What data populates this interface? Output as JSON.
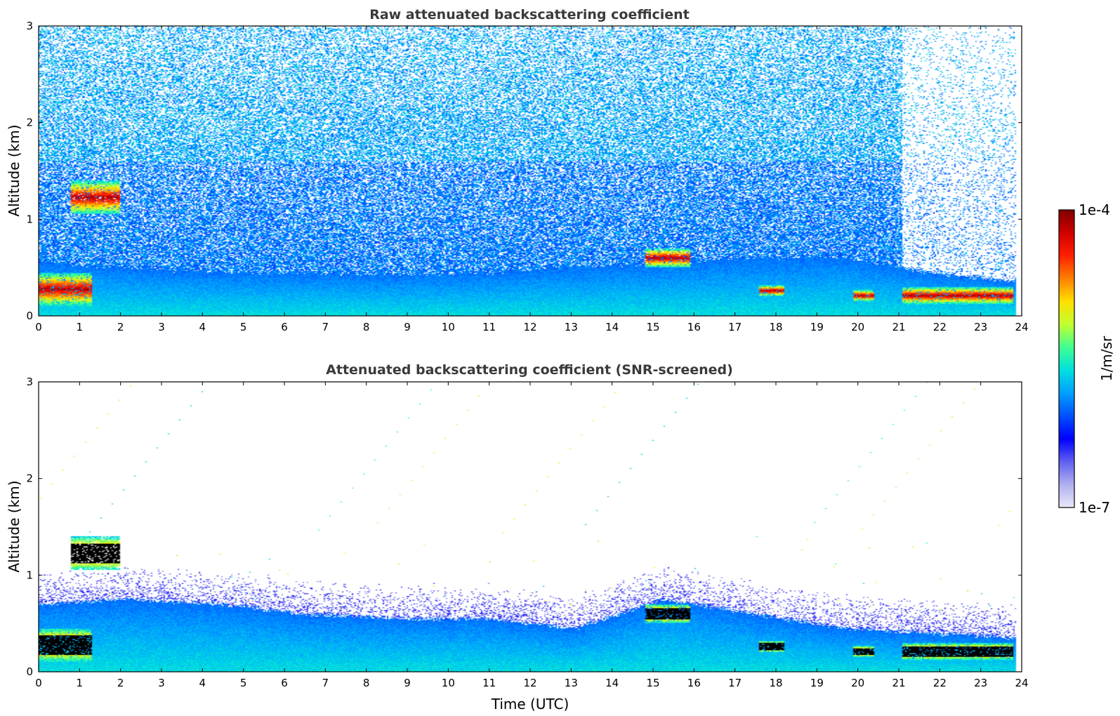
{
  "chart_data": [
    {
      "type": "heatmap",
      "title": "Raw attenuated backscattering coefficient",
      "xlabel": "",
      "ylabel": "Altitude (km)",
      "xlim": [
        0,
        24
      ],
      "ylim": [
        0,
        3
      ],
      "xticks": [
        "0",
        "1",
        "2",
        "3",
        "4",
        "5",
        "6",
        "7",
        "8",
        "9",
        "10",
        "11",
        "12",
        "13",
        "14",
        "15",
        "16",
        "17",
        "18",
        "19",
        "20",
        "21",
        "22",
        "23",
        "24"
      ],
      "yticks": [
        "0",
        "1",
        "2",
        "3"
      ],
      "noise": "high",
      "features": [
        {
          "kind": "boundary-layer",
          "t": [
            0,
            24
          ],
          "top_km": [
            0.55,
            0.5,
            0.45,
            0.45,
            0.42,
            0.45,
            0.5,
            0.55,
            0.6,
            0.6,
            0.45,
            0.35
          ]
        },
        {
          "kind": "cloud",
          "t": [
            0.8,
            2.0
          ],
          "alt_km": [
            1.05,
            1.4
          ],
          "intensity": "1e-4"
        },
        {
          "kind": "cloud",
          "t": [
            0.0,
            1.3
          ],
          "alt_km": [
            0.1,
            0.45
          ],
          "intensity": "1e-4"
        },
        {
          "kind": "cloud",
          "t": [
            14.8,
            15.9
          ],
          "alt_km": [
            0.5,
            0.7
          ],
          "intensity": "1e-4"
        },
        {
          "kind": "cloud",
          "t": [
            17.6,
            18.2
          ],
          "alt_km": [
            0.2,
            0.32
          ],
          "intensity": "1e-4"
        },
        {
          "kind": "cloud",
          "t": [
            19.9,
            20.4
          ],
          "alt_km": [
            0.15,
            0.27
          ],
          "intensity": "1e-4"
        },
        {
          "kind": "cloud",
          "t": [
            21.1,
            23.8
          ],
          "alt_km": [
            0.12,
            0.3
          ],
          "intensity": "1e-4"
        }
      ]
    },
    {
      "type": "heatmap",
      "title": "Attenuated backscattering coefficient (SNR-screened)",
      "xlabel": "Time (UTC)",
      "ylabel": "Altitude (km)",
      "xlim": [
        0,
        24
      ],
      "ylim": [
        0,
        3
      ],
      "xticks": [
        "0",
        "1",
        "2",
        "3",
        "4",
        "5",
        "6",
        "7",
        "8",
        "9",
        "10",
        "11",
        "12",
        "13",
        "14",
        "15",
        "16",
        "17",
        "18",
        "19",
        "20",
        "21",
        "22",
        "23",
        "24"
      ],
      "yticks": [
        "0",
        "1",
        "2",
        "3"
      ],
      "noise": "screened",
      "features": [
        {
          "kind": "boundary-layer",
          "t": [
            0,
            24
          ],
          "top_km": [
            0.7,
            0.75,
            0.7,
            0.6,
            0.55,
            0.55,
            0.45,
            0.75,
            0.6,
            0.45,
            0.4,
            0.35
          ]
        },
        {
          "kind": "cloud",
          "t": [
            0.8,
            2.0
          ],
          "alt_km": [
            1.05,
            1.4
          ],
          "intensity": "saturated"
        },
        {
          "kind": "cloud",
          "t": [
            0.0,
            1.3
          ],
          "alt_km": [
            0.1,
            0.45
          ],
          "intensity": "saturated"
        },
        {
          "kind": "cloud",
          "t": [
            14.8,
            15.9
          ],
          "alt_km": [
            0.5,
            0.7
          ],
          "intensity": "saturated"
        },
        {
          "kind": "cloud",
          "t": [
            17.6,
            18.2
          ],
          "alt_km": [
            0.2,
            0.32
          ],
          "intensity": "saturated"
        },
        {
          "kind": "cloud",
          "t": [
            19.9,
            20.4
          ],
          "alt_km": [
            0.15,
            0.27
          ],
          "intensity": "saturated"
        },
        {
          "kind": "cloud",
          "t": [
            21.1,
            23.8
          ],
          "alt_km": [
            0.12,
            0.3
          ],
          "intensity": "saturated"
        }
      ]
    }
  ],
  "colorbar": {
    "label": "1/m/sr",
    "max_label": "1e-4",
    "min_label": "1e-7",
    "colormap": [
      "#e8e8f8",
      "#b0b0f0",
      "#6060f0",
      "#0000ff",
      "#0050ff",
      "#00a0ff",
      "#00e0e0",
      "#40ff90",
      "#c0ff30",
      "#ffe000",
      "#ff8000",
      "#ff2000",
      "#d00000",
      "#800000"
    ]
  }
}
